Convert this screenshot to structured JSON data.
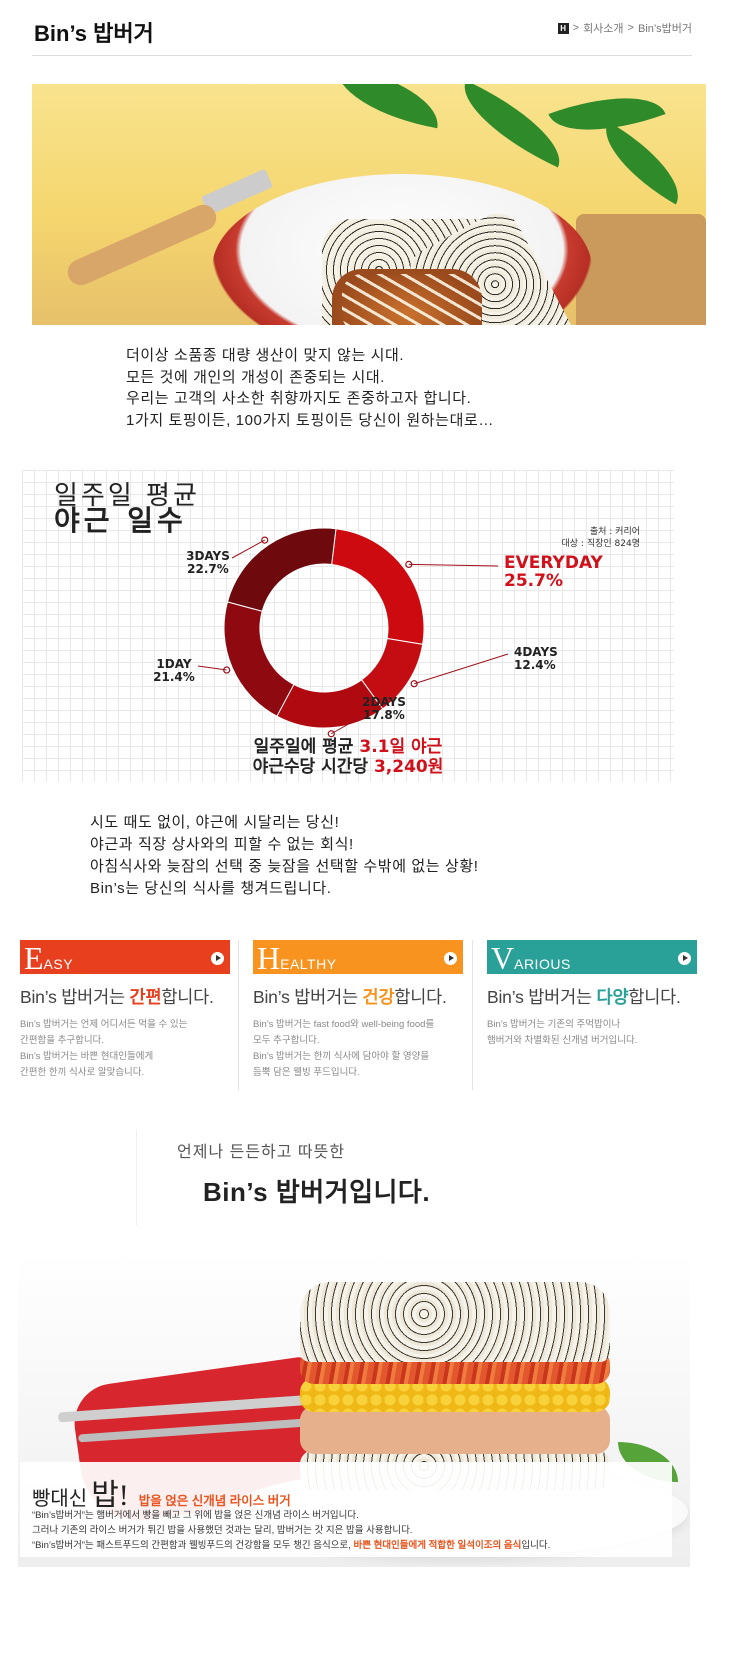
{
  "header": {
    "title": "Bin’s 밥버거",
    "breadcrumb_home": "H",
    "breadcrumb_1": "회사소개",
    "breadcrumb_2": "Bin’s밥버거"
  },
  "intro": {
    "line1": "더이상 소품종 대량 생산이 맞지 않는 시대.",
    "line2": "모든 것에 개인의 개성이 존중되는 시대.",
    "line3": "우리는 고객의 사소한 취향까지도 존중하고자 합니다.",
    "line4": "1가지 토핑이든, 100가지 토핑이든 당신이 원하는대로…"
  },
  "chart_data": {
    "type": "pie",
    "title": "일주일 평균",
    "subtitle": "야근 일수",
    "source": "출처 : 커리어",
    "target": "대상 : 직장인 824명",
    "categories": [
      "EVERYDAY",
      "4DAYS",
      "2DAYS",
      "1DAY",
      "3DAYS"
    ],
    "values": [
      25.7,
      12.4,
      17.8,
      21.4,
      22.7
    ],
    "value_labels": [
      "25.7%",
      "12.4%",
      "17.8%",
      "21.4%",
      "22.7%"
    ],
    "colors": [
      "#cc0a10",
      "#c40d12",
      "#b00a10",
      "#8f0a10",
      "#6e0a0e"
    ],
    "footer_line1_prefix": "일주일에 평균 ",
    "footer_line1_highlight": "3.1일 야근",
    "footer_line2_prefix": "야근수당 시간당 ",
    "footer_line2_highlight": "3,240원"
  },
  "section2": {
    "line1": "시도 때도 없이, 야근에 시달리는 당신!",
    "line2": "야근과 직장 상사와의 피할 수 없는 회식!",
    "line3": "아침식사와 늦잠의 선택 중 늦잠을 선택할 수밖에 없는 상황!",
    "line4": "Bin’s는 당신의 식사를 챙겨드립니다."
  },
  "cards": [
    {
      "color": "#e8401f",
      "initial": "E",
      "rest": "ASY",
      "title_prefix": "Bin’s 밥버거는 ",
      "title_highlight": "간편",
      "title_suffix": "합니다.",
      "highlight_color": "#e8401f",
      "desc1": "Bin’s 밥버거는 언제 어디서든 먹을 수 있는",
      "desc2": "간편함을 추구합니다.",
      "desc3": "Bin’s 밥버거는 바쁜 현대인들에게",
      "desc4": "간편한 한끼 식사로 알맞습니다."
    },
    {
      "color": "#f7931e",
      "initial": "H",
      "rest": "EALTHY",
      "title_prefix": "Bin’s 밥버거는 ",
      "title_highlight": "건강",
      "title_suffix": "합니다.",
      "highlight_color": "#f7931e",
      "desc1": "Bin’s 밥버거는 fast food와 well-being food를",
      "desc2": "모두 추구합니다.",
      "desc3": "Bin’s 밥버거는 한끼 식사에 담아야 할 영양을",
      "desc4": "듬뿍 담은 웰빙 푸드입니다."
    },
    {
      "color": "#2aa198",
      "initial": "V",
      "rest": "ARIOUS",
      "title_prefix": "Bin’s 밥버거는 ",
      "title_highlight": "다양",
      "title_suffix": "합니다.",
      "highlight_color": "#2aa198",
      "desc1": "Bin’s 밥버거는 기존의 주먹밥이나",
      "desc2": "햄버거와 차별화된 신개념 버거입니다.",
      "desc3": "",
      "desc4": ""
    }
  ],
  "tagline": {
    "sub": "언제나 든든하고 따뜻한",
    "main": "Bin’s 밥버거입니다."
  },
  "promo": {
    "lead": "빵대신",
    "big": "밥!",
    "sub": "밥을 얹은 신개념 라이스 버거",
    "line1": "“Bin’s밥버거”는 햄버거에서 빵을 빼고 그 위에 밥을 얹은 신개념 라이스 버거입니다.",
    "line2": "그러나 기존의 라이스 버거가 튀긴 밥을 사용했던 것과는 달리, 밥버거는 갓 지은 밥을 사용합니다.",
    "line3_prefix": "“Bin’s밥버거”는 패스트푸드의 간편함과 웰빙푸드의 건강함을 모두 챙긴 음식으로, ",
    "line3_highlight": "바쁜 현대인들에게 적합한 일석이조의 음식",
    "line3_suffix": "입니다."
  }
}
